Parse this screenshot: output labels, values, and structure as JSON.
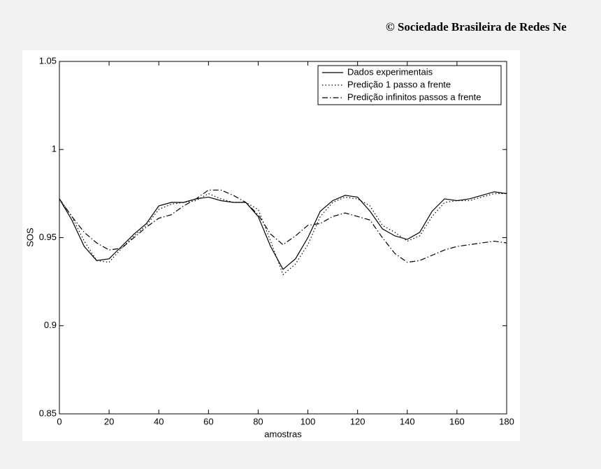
{
  "watermark": "© Sociedade Brasileira de Redes Ne",
  "chart_data": {
    "type": "line",
    "xlabel": "amostras",
    "ylabel": "SOS",
    "x": [
      0,
      5,
      10,
      15,
      20,
      25,
      30,
      35,
      40,
      45,
      50,
      55,
      60,
      65,
      70,
      75,
      80,
      85,
      90,
      95,
      100,
      105,
      110,
      115,
      120,
      125,
      130,
      135,
      140,
      145,
      150,
      155,
      160,
      165,
      170,
      175,
      180
    ],
    "series": [
      {
        "name": "Dados experimentais",
        "color": "#000000",
        "dash": "solid",
        "values": [
          0.972,
          0.96,
          0.945,
          0.937,
          0.938,
          0.945,
          0.952,
          0.958,
          0.968,
          0.97,
          0.97,
          0.972,
          0.973,
          0.971,
          0.97,
          0.97,
          0.962,
          0.945,
          0.932,
          0.938,
          0.95,
          0.965,
          0.971,
          0.974,
          0.973,
          0.965,
          0.955,
          0.951,
          0.949,
          0.953,
          0.965,
          0.972,
          0.971,
          0.972,
          0.974,
          0.976,
          0.975
        ]
      },
      {
        "name": "Predição 1 passo a frente",
        "color": "#000000",
        "dash": "dotted",
        "values": [
          0.972,
          0.962,
          0.948,
          0.937,
          0.936,
          0.944,
          0.951,
          0.957,
          0.966,
          0.969,
          0.97,
          0.971,
          0.975,
          0.972,
          0.97,
          0.97,
          0.966,
          0.948,
          0.929,
          0.935,
          0.946,
          0.962,
          0.97,
          0.973,
          0.972,
          0.968,
          0.957,
          0.953,
          0.948,
          0.951,
          0.962,
          0.97,
          0.971,
          0.971,
          0.973,
          0.975,
          0.975
        ]
      },
      {
        "name": "Predição infinitos passos a frente",
        "color": "#000000",
        "dash": "dashdot",
        "values": [
          0.972,
          0.962,
          0.953,
          0.947,
          0.943,
          0.944,
          0.95,
          0.956,
          0.961,
          0.963,
          0.968,
          0.972,
          0.977,
          0.977,
          0.974,
          0.97,
          0.963,
          0.952,
          0.946,
          0.951,
          0.957,
          0.958,
          0.962,
          0.964,
          0.962,
          0.96,
          0.95,
          0.941,
          0.936,
          0.937,
          0.94,
          0.943,
          0.945,
          0.946,
          0.947,
          0.948,
          0.947
        ]
      }
    ],
    "xlim": [
      0,
      180
    ],
    "xticks": [
      0,
      20,
      40,
      60,
      80,
      100,
      120,
      140,
      160,
      180
    ],
    "ylim": [
      0.85,
      1.05
    ],
    "yticks": [
      0.85,
      0.9,
      0.95,
      1,
      1.05
    ],
    "grid": false,
    "legend": "upper right"
  }
}
